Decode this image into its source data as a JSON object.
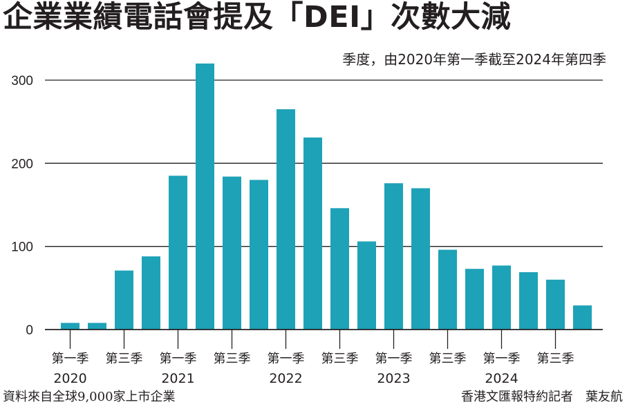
{
  "title": "企業業績電話會提及「DEI」次數大減",
  "subtitle": "季度，由2020年第一季截至2024年第四季",
  "footer": {
    "source": "資料來自全球9,000家上市企業",
    "credit": "香港文匯報特約記者　葉友航"
  },
  "colors": {
    "bar": "#1ea2b7",
    "text": "#231f20",
    "grid": "#231f20"
  },
  "chart_data": {
    "type": "bar",
    "categories": [
      "2020 Q1",
      "2020 Q2",
      "2020 Q3",
      "2020 Q4",
      "2021 Q1",
      "2021 Q2",
      "2021 Q3",
      "2021 Q4",
      "2022 Q1",
      "2022 Q2",
      "2022 Q3",
      "2022 Q4",
      "2023 Q1",
      "2023 Q2",
      "2023 Q3",
      "2023 Q4",
      "2024 Q1",
      "2024 Q2",
      "2024 Q3",
      "2024 Q4"
    ],
    "values": [
      8,
      8,
      71,
      88,
      185,
      320,
      184,
      180,
      265,
      231,
      146,
      106,
      176,
      170,
      96,
      73,
      77,
      69,
      60,
      29
    ],
    "ylim": [
      0,
      330
    ],
    "yticks": [
      0,
      100,
      200,
      300
    ],
    "quarter_labels": [
      "第一季",
      "第三季"
    ],
    "years": [
      "2020",
      "2021",
      "2022",
      "2023",
      "2024"
    ],
    "grid": true,
    "xlabel": "",
    "ylabel": ""
  }
}
